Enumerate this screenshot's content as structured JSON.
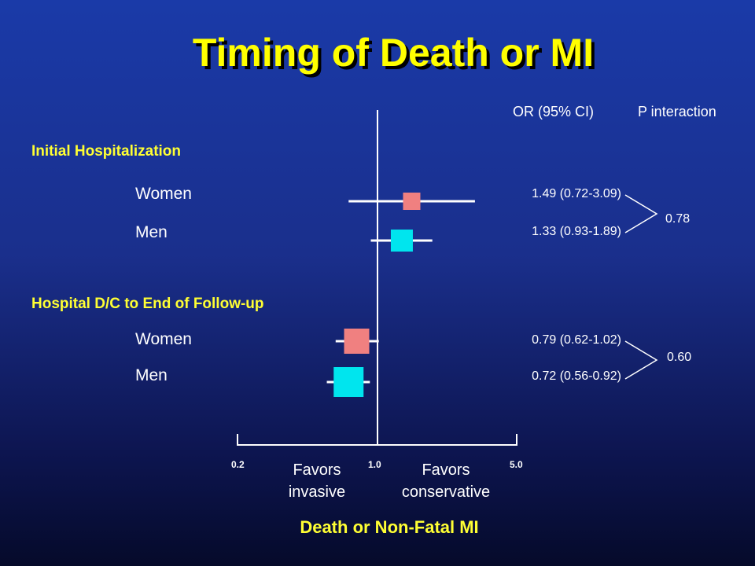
{
  "title": "Timing of Death or MI",
  "headers": {
    "or_ci": "OR (95% CI)",
    "p_interaction": "P interaction"
  },
  "chart_data": {
    "type": "forest",
    "xlabel": "Death or Non-Fatal MI",
    "x_scale": "log",
    "xlim": [
      0.2,
      5.0
    ],
    "reference_line": 1.0,
    "x_ticks": [
      "0.2",
      "1.0",
      "5.0"
    ],
    "favors_left": "Favors invasive",
    "favors_right": "Favors conservative",
    "groups": [
      {
        "label": "Initial Hospitalization",
        "p_interaction": "0.78",
        "rows": [
          {
            "label": "Women",
            "or": 1.49,
            "ci": [
              0.72,
              3.09
            ],
            "text": "1.49 (0.72-3.09)",
            "color": "#f08080"
          },
          {
            "label": "Men",
            "or": 1.33,
            "ci": [
              0.93,
              1.89
            ],
            "text": "1.33 (0.93-1.89)",
            "color": "#00e5ee"
          }
        ]
      },
      {
        "label": "Hospital D/C to End of Follow-up",
        "p_interaction": "0.60",
        "rows": [
          {
            "label": "Women",
            "or": 0.79,
            "ci": [
              0.62,
              1.02
            ],
            "text": "0.79 (0.62-1.02)",
            "color": "#f08080"
          },
          {
            "label": "Men",
            "or": 0.72,
            "ci": [
              0.56,
              0.92
            ],
            "text": "0.72 (0.56-0.92)",
            "color": "#00e5ee"
          }
        ]
      }
    ]
  }
}
